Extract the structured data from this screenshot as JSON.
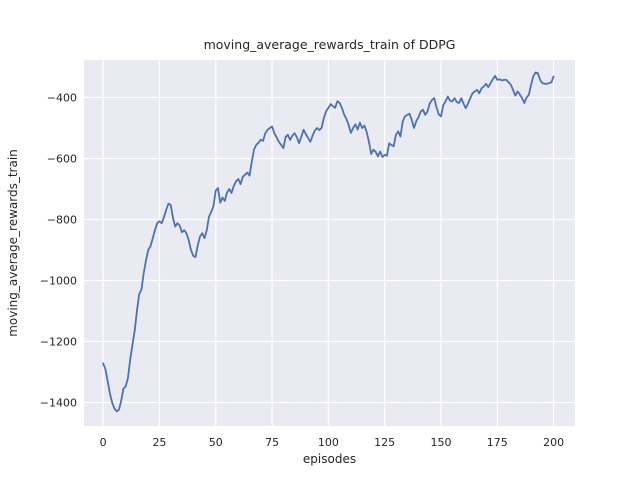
{
  "figure": {
    "background_color": "#ffffff",
    "plot_background_color": "#eaeaf2",
    "grid_color": "#ffffff",
    "line_color": "#4c72b0",
    "text_color": "#262626"
  },
  "chart_data": {
    "type": "line",
    "title": "moving_average_rewards_train of DDPG",
    "xlabel": "episodes",
    "ylabel": "moving_average_rewards_train",
    "grid": true,
    "legend": "none",
    "xlim": [
      -8.5,
      209.5
    ],
    "ylim": [
      -1477,
      -277
    ],
    "x_ticks": [
      {
        "value": 0,
        "label": "0"
      },
      {
        "value": 25,
        "label": "25"
      },
      {
        "value": 50,
        "label": "50"
      },
      {
        "value": 75,
        "label": "75"
      },
      {
        "value": 100,
        "label": "100"
      },
      {
        "value": 125,
        "label": "125"
      },
      {
        "value": 150,
        "label": "150"
      },
      {
        "value": 175,
        "label": "175"
      },
      {
        "value": 200,
        "label": "200"
      }
    ],
    "y_ticks": [
      {
        "value": -400,
        "label": "−400"
      },
      {
        "value": -600,
        "label": "−600"
      },
      {
        "value": -800,
        "label": "−800"
      },
      {
        "value": -1000,
        "label": "−1000"
      },
      {
        "value": -1200,
        "label": "−1200"
      },
      {
        "value": -1400,
        "label": "−1400"
      }
    ],
    "series": [
      {
        "name": "moving_average_rewards_train",
        "x_start": 0,
        "x_step": 1,
        "values": [
          -1272,
          -1290,
          -1330,
          -1370,
          -1400,
          -1420,
          -1429,
          -1424,
          -1395,
          -1355,
          -1347,
          -1320,
          -1260,
          -1211,
          -1165,
          -1100,
          -1045,
          -1030,
          -976,
          -935,
          -900,
          -888,
          -862,
          -835,
          -812,
          -806,
          -812,
          -792,
          -768,
          -748,
          -752,
          -795,
          -823,
          -812,
          -820,
          -842,
          -835,
          -845,
          -868,
          -900,
          -919,
          -923,
          -885,
          -856,
          -845,
          -861,
          -835,
          -790,
          -775,
          -755,
          -705,
          -697,
          -745,
          -728,
          -739,
          -712,
          -700,
          -713,
          -690,
          -675,
          -667,
          -684,
          -660,
          -653,
          -646,
          -656,
          -610,
          -570,
          -555,
          -548,
          -538,
          -542,
          -517,
          -506,
          -500,
          -495,
          -517,
          -530,
          -545,
          -555,
          -566,
          -530,
          -522,
          -539,
          -525,
          -517,
          -530,
          -550,
          -528,
          -506,
          -520,
          -533,
          -545,
          -525,
          -508,
          -500,
          -507,
          -499,
          -467,
          -445,
          -434,
          -422,
          -428,
          -434,
          -412,
          -418,
          -434,
          -456,
          -470,
          -490,
          -516,
          -500,
          -488,
          -505,
          -482,
          -500,
          -492,
          -513,
          -545,
          -585,
          -571,
          -578,
          -593,
          -577,
          -595,
          -588,
          -591,
          -550,
          -556,
          -560,
          -522,
          -511,
          -528,
          -479,
          -462,
          -457,
          -453,
          -473,
          -500,
          -478,
          -465,
          -446,
          -440,
          -457,
          -446,
          -420,
          -408,
          -402,
          -432,
          -455,
          -462,
          -425,
          -413,
          -397,
          -410,
          -413,
          -402,
          -415,
          -418,
          -402,
          -420,
          -435,
          -420,
          -402,
          -386,
          -380,
          -375,
          -386,
          -370,
          -364,
          -355,
          -366,
          -353,
          -340,
          -329,
          -342,
          -340,
          -344,
          -342,
          -342,
          -350,
          -358,
          -375,
          -394,
          -380,
          -390,
          -402,
          -418,
          -400,
          -391,
          -358,
          -330,
          -318,
          -320,
          -342,
          -353,
          -355,
          -355,
          -353,
          -350,
          -331
        ]
      }
    ]
  }
}
